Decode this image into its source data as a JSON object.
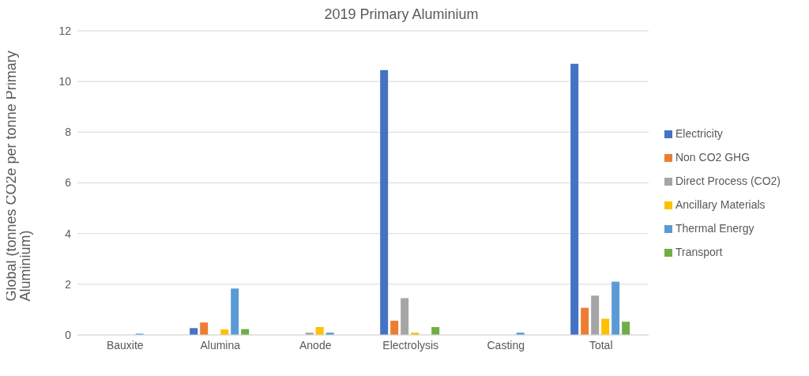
{
  "chart_data": {
    "type": "bar",
    "title": "2019 Primary Aluminium",
    "ylabel": "Global (tonnes CO2e per tonne Primary Aluminium)",
    "categories": [
      "Bauxite",
      "Alumina",
      "Anode",
      "Electrolysis",
      "Casting",
      "Total"
    ],
    "series": [
      {
        "name": "Electricity",
        "color": "#4472c4",
        "values": [
          0,
          0.27,
          0,
          10.45,
          0,
          10.7
        ]
      },
      {
        "name": "Non CO2 GHG",
        "color": "#ed7d31",
        "values": [
          0,
          0.49,
          0,
          0.56,
          0,
          1.07
        ]
      },
      {
        "name": "Direct Process (CO2)",
        "color": "#a5a5a5",
        "values": [
          0,
          0,
          0.09,
          1.45,
          0,
          1.55
        ]
      },
      {
        "name": "Ancillary Materials",
        "color": "#ffc000",
        "values": [
          0,
          0.22,
          0.31,
          0.09,
          0,
          0.64
        ]
      },
      {
        "name": "Thermal Energy",
        "color": "#5b9bd5",
        "values": [
          0.05,
          1.83,
          0.09,
          0,
          0.09,
          2.1
        ]
      },
      {
        "name": "Transport",
        "color": "#70ad47",
        "values": [
          0,
          0.23,
          0,
          0.31,
          0,
          0.52
        ]
      }
    ],
    "ylim": [
      0,
      12
    ],
    "yticks": [
      0,
      2,
      4,
      6,
      8,
      10,
      12
    ],
    "grid": "y",
    "legend": "right"
  }
}
